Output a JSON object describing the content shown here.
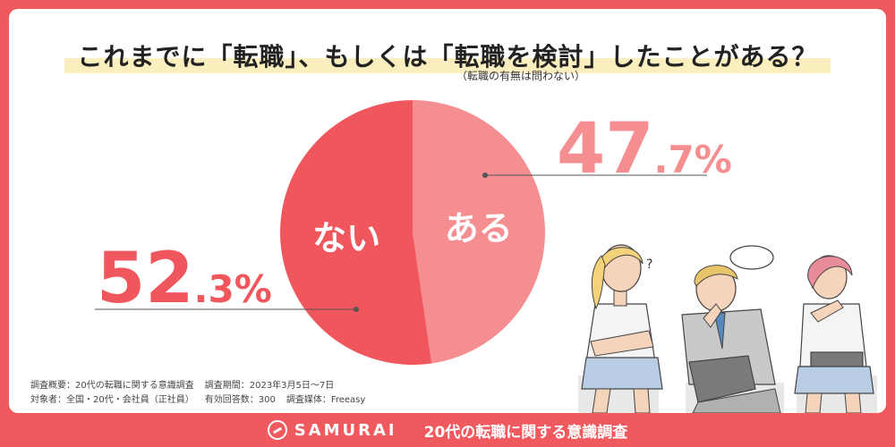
{
  "title": "これまでに「転職」、もしくは「転職を検討」したことがある？",
  "subtitle": "（転職の有無は問わない）",
  "chart_data": {
    "type": "pie",
    "slices": [
      {
        "label": "ある",
        "value": 47.7,
        "int": "47",
        "dec": ".7%",
        "color": "#f58e90"
      },
      {
        "label": "ない",
        "value": 52.3,
        "int": "52",
        "dec": ".3%",
        "color": "#f0575d"
      }
    ]
  },
  "notes": {
    "line1a": "調査概要：20代の転職に関する意識調査",
    "line1b": "調査期間：2023年3月5日〜7日",
    "line2a": "対象者：全国・20代・会社員（正社員）",
    "line2b": "有効回答数：300",
    "line2c": "調査媒体：Freeasy"
  },
  "footer": {
    "brand": "SAMURAI",
    "title": "20代の転職に関する意識調査"
  },
  "colors": {
    "background": "#f05a5e",
    "yes": "#f58e90",
    "no": "#f0575d",
    "highlight": "#fbefc0"
  },
  "illustration": {
    "question_mark": "?"
  }
}
